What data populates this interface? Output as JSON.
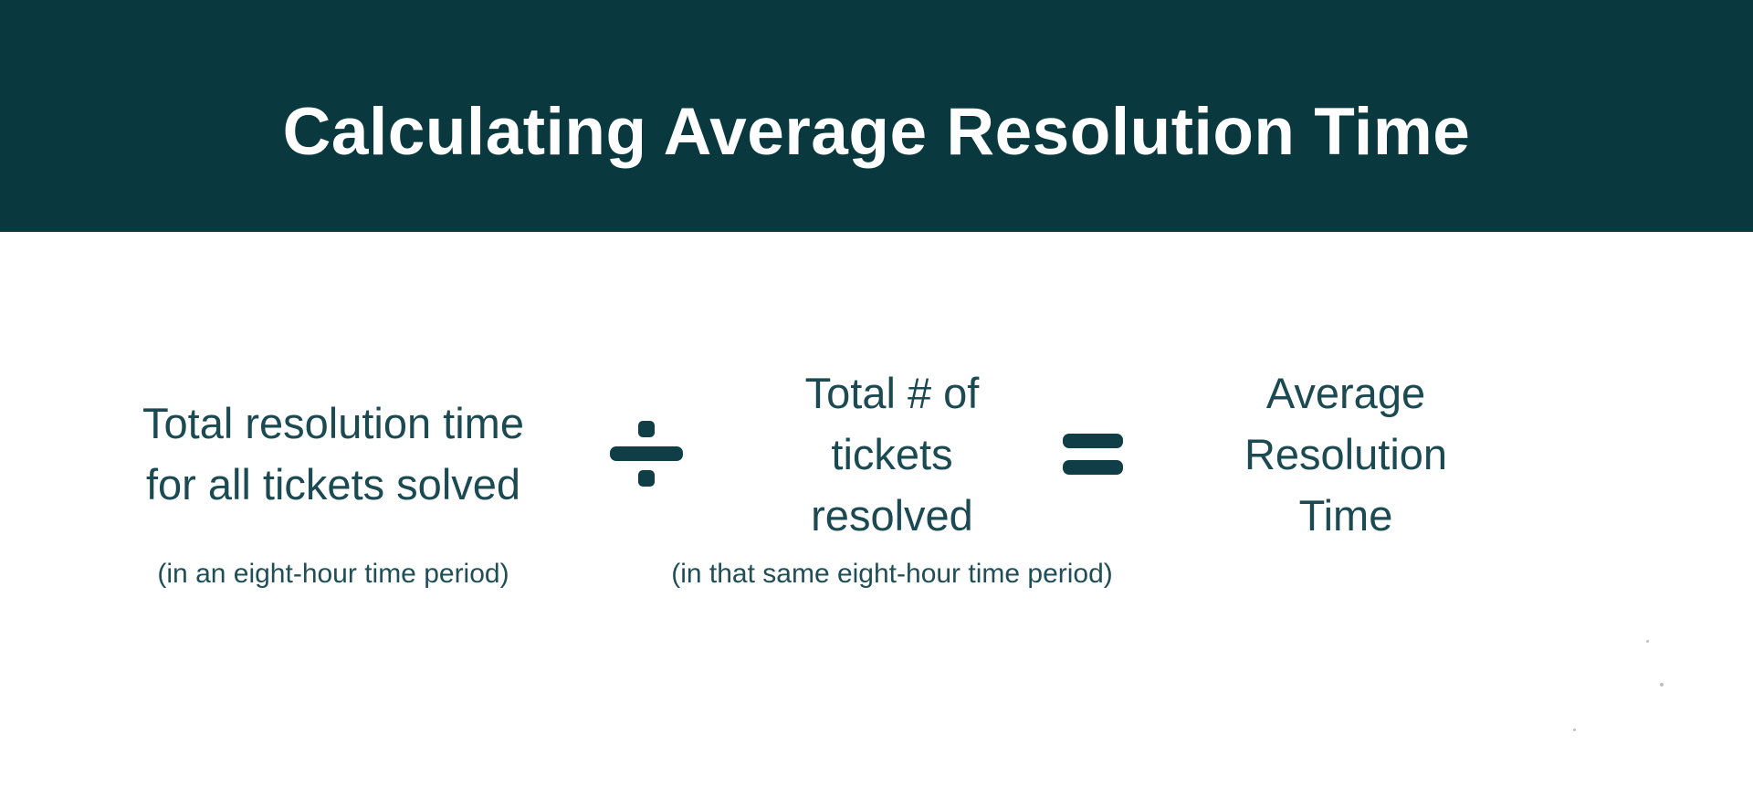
{
  "header": {
    "title": "Calculating Average Resolution Time"
  },
  "formula": {
    "left": {
      "label": "Total resolution time\nfor all tickets solved",
      "note": "(in an eight-hour time period)"
    },
    "operator_divide": {
      "name": "divide",
      "glyph": "÷"
    },
    "middle": {
      "label": "Total # of\ntickets\nresolved",
      "note": "(in that same eight-hour time period)"
    },
    "operator_equals": {
      "name": "equals",
      "glyph": "="
    },
    "result": {
      "label": "Average\nResolution\nTime"
    }
  },
  "colors": {
    "banner_background": "#09383E",
    "title_text": "#FFFFFF",
    "body_text": "#1B4A52",
    "note_text": "#1F4E56",
    "symbol": "#103E46",
    "page_background": "#FFFFFF"
  }
}
